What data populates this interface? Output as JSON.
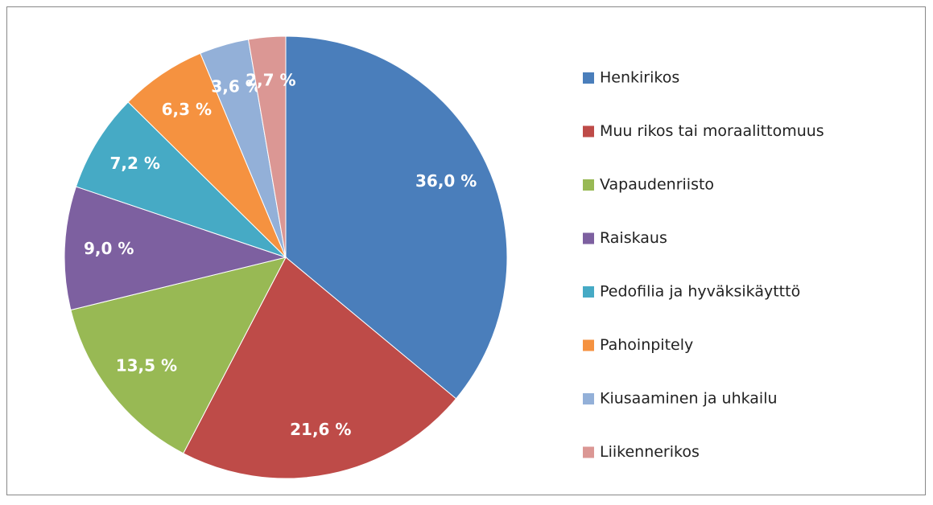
{
  "chart_data": {
    "type": "pie",
    "categories": [
      "Henkirikos",
      "Muu rikos tai moraalittomuus",
      "Vapaudenriisto",
      "Raiskaus",
      "Pedofilia ja hyväksikäytttö",
      "Pahoinpitely",
      "Kiusaaminen ja uhkailu",
      "Liikennerikos"
    ],
    "values": [
      36.0,
      21.6,
      13.5,
      9.0,
      7.2,
      6.3,
      3.6,
      2.7
    ],
    "value_labels": [
      "36,0 %",
      "21,6 %",
      "13,5 %",
      "9,0 %",
      "7,2 %",
      "6,3 %",
      "3,6 %",
      "2,7 %"
    ],
    "colors": [
      "#4a7ebb",
      "#be4b48",
      "#98b954",
      "#7d60a0",
      "#46aac5",
      "#f59240",
      "#93b0d8",
      "#db9794"
    ],
    "legend": "right"
  }
}
